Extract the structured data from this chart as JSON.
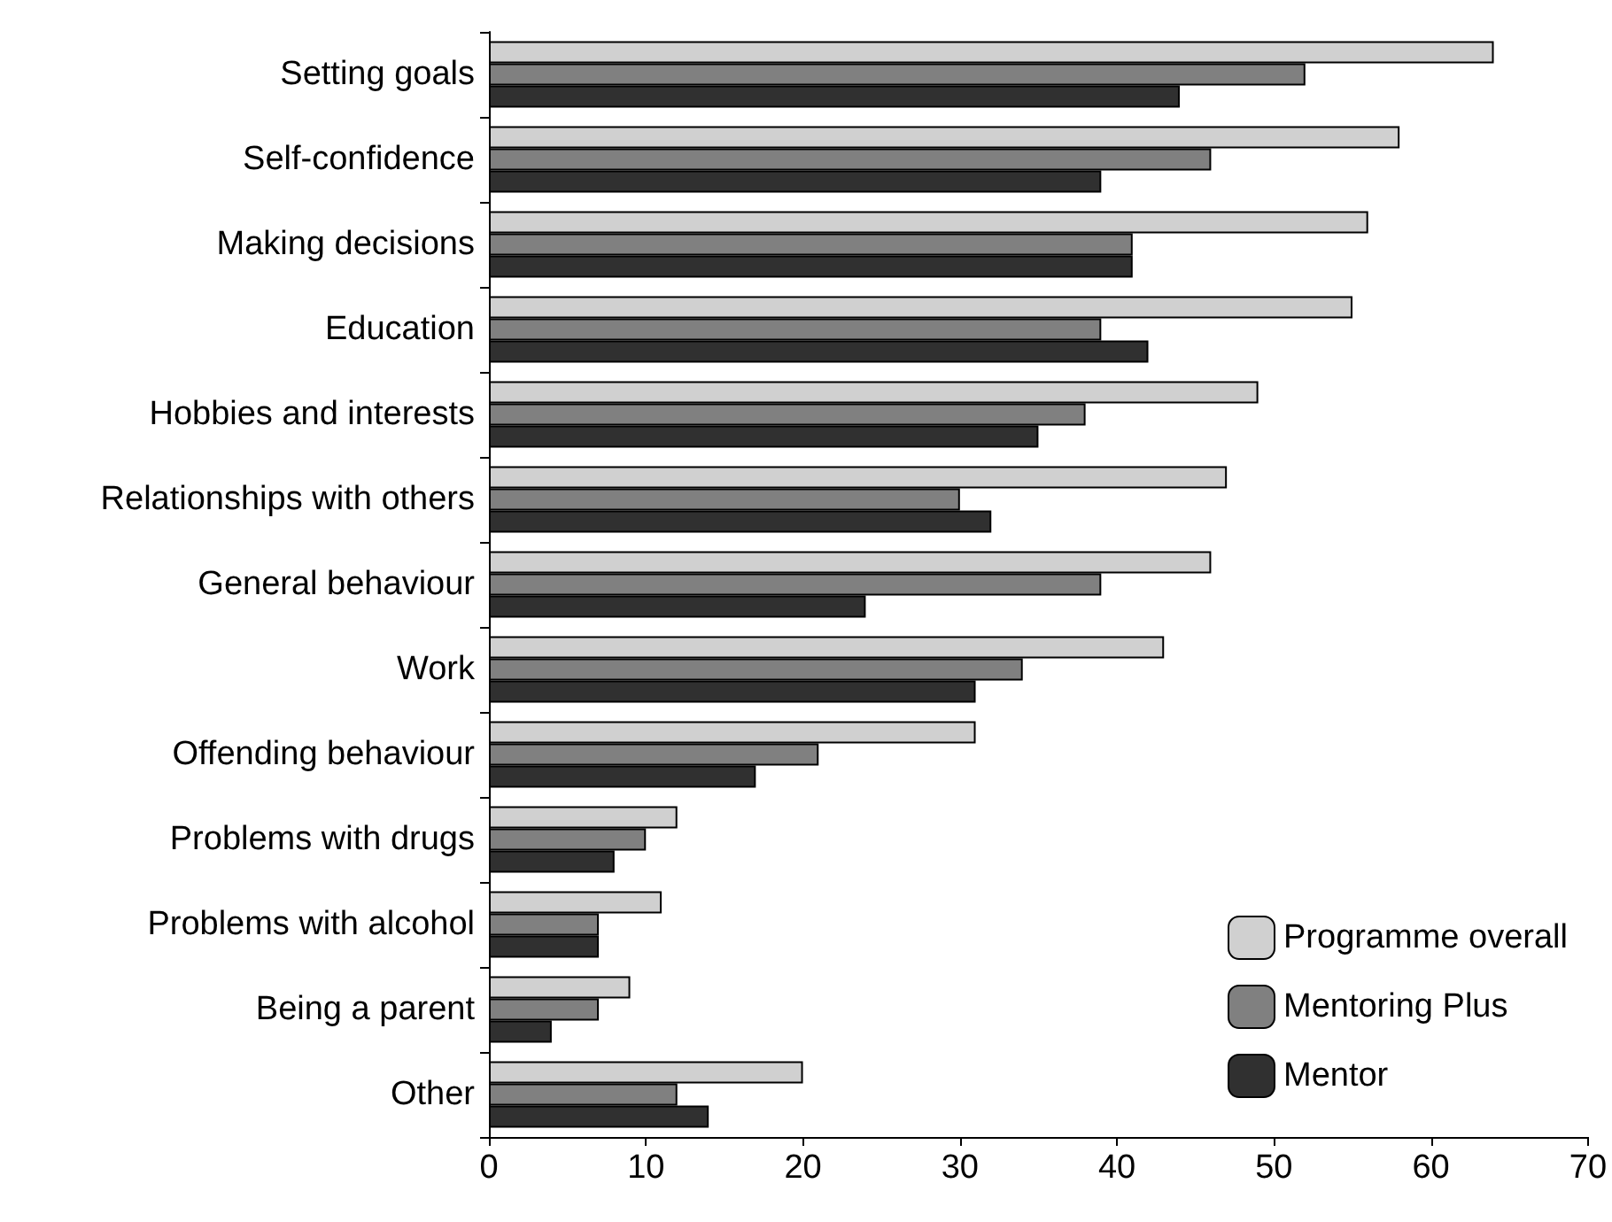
{
  "chart_data": {
    "type": "bar",
    "orientation": "horizontal",
    "categories": [
      "Setting goals",
      "Self-confidence",
      "Making decisions",
      "Education",
      "Hobbies and interests",
      "Relationships with others",
      "General behaviour",
      "Work",
      "Offending behaviour",
      "Problems with drugs",
      "Problems with alcohol",
      "Being a parent",
      "Other"
    ],
    "series": [
      {
        "name": "Programme overall",
        "color": "#d0d0d0",
        "values": [
          64,
          58,
          56,
          55,
          49,
          47,
          46,
          43,
          31,
          12,
          11,
          9,
          20
        ]
      },
      {
        "name": "Mentoring Plus",
        "color": "#808080",
        "values": [
          52,
          46,
          41,
          39,
          38,
          30,
          39,
          34,
          21,
          10,
          7,
          7,
          12
        ]
      },
      {
        "name": "Mentor",
        "color": "#303030",
        "values": [
          44,
          39,
          41,
          42,
          35,
          32,
          24,
          31,
          17,
          8,
          7,
          4,
          14
        ]
      }
    ],
    "xlim": [
      0,
      70
    ],
    "xticks": [
      0,
      10,
      20,
      30,
      40,
      50,
      60,
      70
    ],
    "grid": false,
    "legend": "bottom right"
  }
}
